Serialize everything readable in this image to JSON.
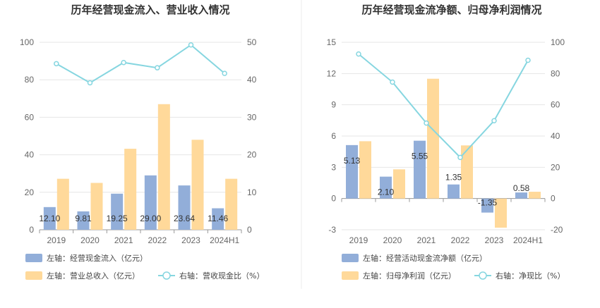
{
  "chart_data": [
    {
      "type": "bar",
      "title": "历年经营现金流入、营业收入情况",
      "categories": [
        "2019",
        "2020",
        "2021",
        "2022",
        "2023",
        "2024H1"
      ],
      "y_left": {
        "range": [
          0,
          100
        ],
        "ticks": [
          "0",
          "20",
          "40",
          "60",
          "80",
          "100"
        ]
      },
      "y_right": {
        "range": [
          0,
          50
        ],
        "ticks": [
          "0",
          "10",
          "20",
          "30",
          "40",
          "50"
        ]
      },
      "series": [
        {
          "name": "左轴：经营现金流入（亿元）",
          "axis": "left",
          "type": "bar",
          "color": "#92aed9",
          "values": [
            12.1,
            9.81,
            19.25,
            29.0,
            23.64,
            11.46
          ],
          "labels": [
            "12.10",
            "9.81",
            "19.25",
            "29.00",
            "23.64",
            "11.46"
          ]
        },
        {
          "name": "左轴：营业总收入（亿元）",
          "axis": "left",
          "type": "bar",
          "color": "#ffd99a",
          "values": [
            27.2,
            25.0,
            43.2,
            67.0,
            48.0,
            27.2
          ]
        },
        {
          "name": "右轴：营收现金比（%）",
          "axis": "right",
          "type": "line",
          "color": "#86d6e0",
          "values": [
            44.3,
            39.2,
            44.6,
            43.2,
            49.3,
            41.7
          ]
        }
      ],
      "grid": true,
      "legend_position": "bottom-left"
    },
    {
      "type": "bar",
      "title": "历年经营现金流净额、归母净利润情况",
      "categories": [
        "2019",
        "2020",
        "2021",
        "2022",
        "2023",
        "2024H1"
      ],
      "y_left": {
        "range": [
          -3,
          15
        ],
        "ticks": [
          "-3",
          "0",
          "3",
          "6",
          "9",
          "12",
          "15"
        ]
      },
      "y_right": {
        "range": [
          -20,
          100
        ],
        "ticks": [
          "-20",
          "0",
          "20",
          "40",
          "60",
          "80",
          "100"
        ]
      },
      "series": [
        {
          "name": "左轴：经营活动现金流净额（亿元）",
          "axis": "left",
          "type": "bar",
          "color": "#92aed9",
          "values": [
            5.13,
            2.1,
            5.55,
            1.35,
            -1.35,
            0.58
          ],
          "labels": [
            "5.13",
            "2.10",
            "5.55",
            "1.35",
            "-1.35",
            "0.58"
          ]
        },
        {
          "name": "左轴：归母净利润（亿元）",
          "axis": "left",
          "type": "bar",
          "color": "#ffd99a",
          "values": [
            5.5,
            2.8,
            11.5,
            5.1,
            -2.8,
            0.65
          ]
        },
        {
          "name": "右轴：净现比（%）",
          "axis": "right",
          "type": "line",
          "color": "#86d6e0",
          "values": [
            92.5,
            74.5,
            48.3,
            26.3,
            49.8,
            88.5
          ]
        }
      ],
      "grid": true,
      "legend_position": "bottom-left"
    }
  ]
}
